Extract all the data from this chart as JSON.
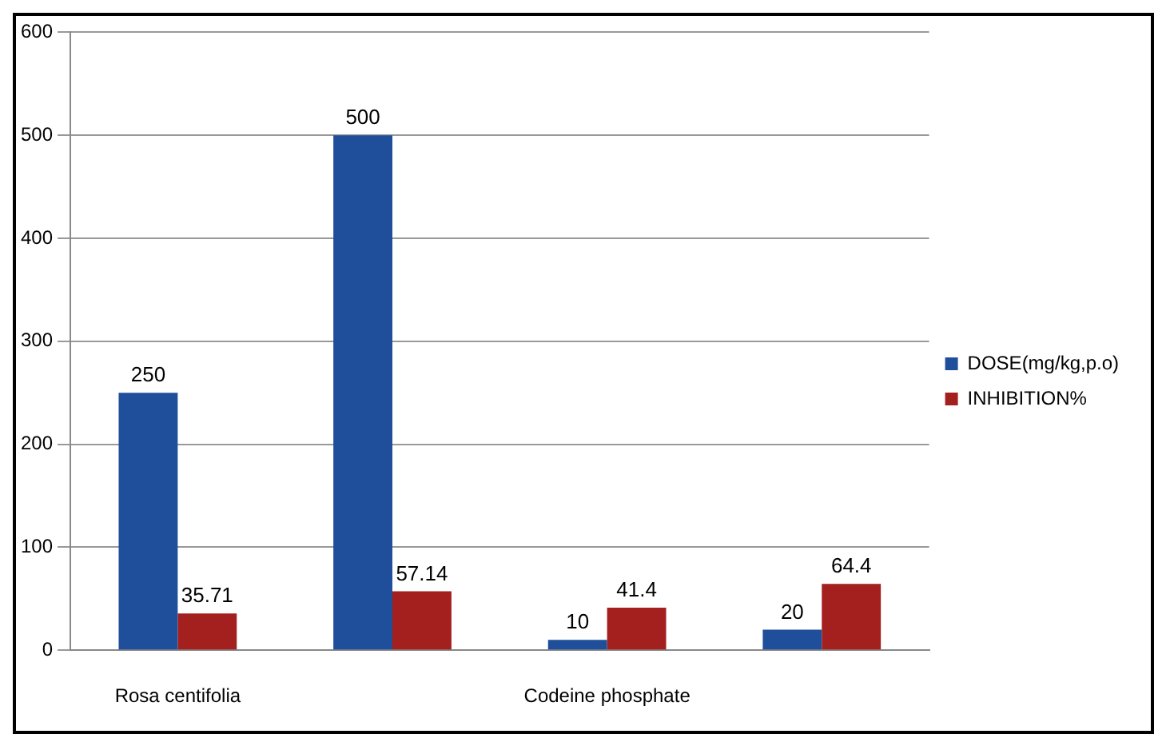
{
  "chart_data": {
    "type": "bar",
    "categories": [
      "Rosa centifolia",
      null,
      "Codeine phosphate",
      null
    ],
    "series": [
      {
        "name": "DOSE(mg/kg,p.o)",
        "color": "#1f4e9a",
        "values": [
          250,
          500,
          10,
          20
        ]
      },
      {
        "name": "INHIBITION%",
        "color": "#a3201f",
        "values": [
          35.71,
          57.14,
          41.4,
          64.4
        ]
      }
    ],
    "ylim": [
      0,
      600
    ],
    "yticks": [
      0,
      100,
      200,
      300,
      400,
      500,
      600
    ],
    "grid": "y",
    "legend": "right",
    "data_labels": true
  }
}
